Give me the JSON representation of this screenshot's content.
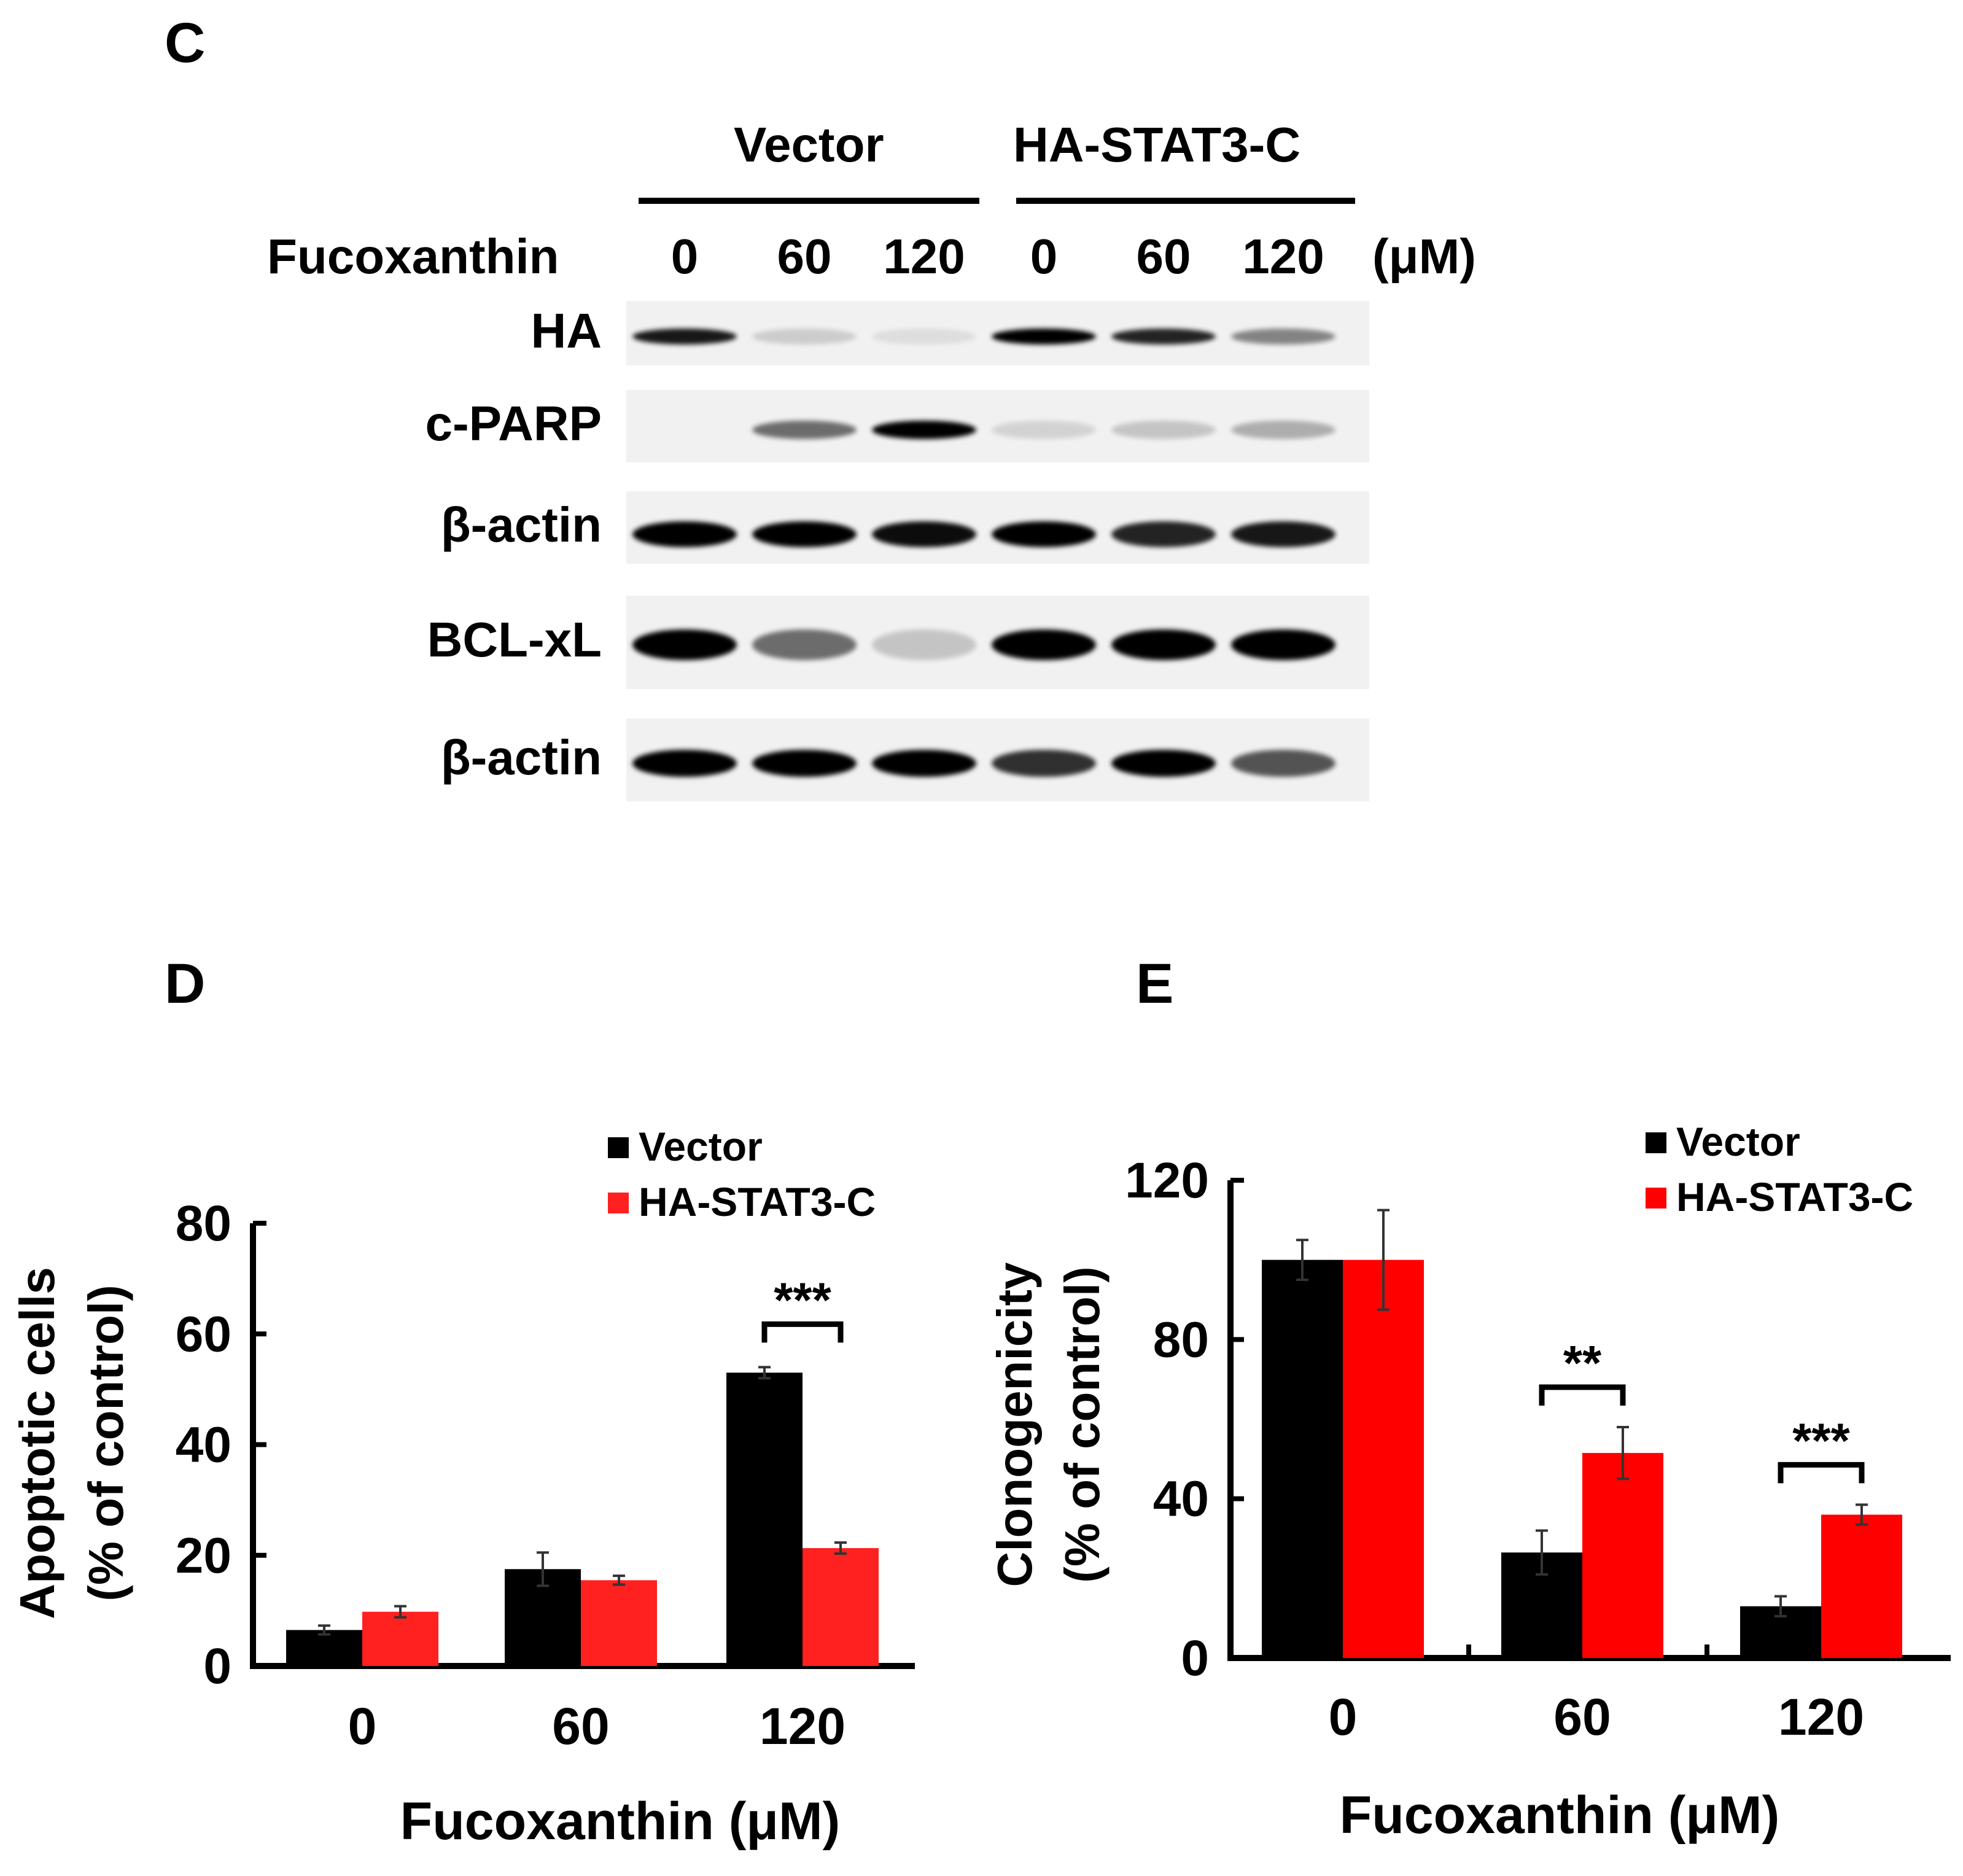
{
  "panel_c": {
    "letter": "C",
    "groups": [
      "Vector",
      "HA-STAT3-C"
    ],
    "treatment_label": "Fucoxanthin",
    "doses": [
      "0",
      "60",
      "120",
      "0",
      "60",
      "120"
    ],
    "unit": "(μM)",
    "rows": [
      {
        "label": "HA",
        "intensity": [
          0.9,
          0.15,
          0.08,
          1.0,
          0.85,
          0.45
        ]
      },
      {
        "label": "c-PARP",
        "intensity": [
          0.0,
          0.55,
          1.0,
          0.12,
          0.18,
          0.28
        ]
      },
      {
        "label": "β-actin",
        "intensity": [
          1.0,
          1.0,
          0.95,
          1.0,
          0.85,
          0.9
        ]
      },
      {
        "label": "BCL-xL",
        "intensity": [
          1.0,
          0.55,
          0.18,
          1.0,
          1.0,
          1.0
        ]
      },
      {
        "label": "β-actin",
        "intensity": [
          1.0,
          1.0,
          1.0,
          0.8,
          1.0,
          0.65
        ]
      }
    ]
  },
  "panel_d": {
    "letter": "D",
    "chart_data": {
      "type": "bar",
      "categories": [
        "0",
        "60",
        "120"
      ],
      "series": [
        {
          "name": "Vector",
          "color": "#000000",
          "values": [
            6.5,
            17.5,
            53
          ],
          "errors": [
            0.8,
            3,
            1
          ]
        },
        {
          "name": "HA-STAT3-C",
          "color": "#ff2020",
          "values": [
            9.8,
            15.5,
            21.3
          ],
          "errors": [
            1,
            0.8,
            1
          ]
        }
      ],
      "xlabel": "Fucoxanthin (μM)",
      "ylabel_line1": "Apoptotic cells",
      "ylabel_line2": "(% of control)",
      "ylim": [
        0,
        80
      ],
      "yticks": [
        "0",
        "20",
        "40",
        "60",
        "80"
      ],
      "significance": [
        {
          "category_index": 2,
          "label": "***"
        }
      ],
      "legend": "top-right"
    }
  },
  "panel_e": {
    "letter": "E",
    "chart_data": {
      "type": "bar",
      "categories": [
        "0",
        "60",
        "120"
      ],
      "series": [
        {
          "name": "Vector",
          "color": "#000000",
          "values": [
            100,
            26.5,
            13
          ],
          "errors": [
            5,
            5.5,
            2.5
          ]
        },
        {
          "name": "HA-STAT3-C",
          "color": "#ff0000",
          "values": [
            100,
            51.5,
            36
          ],
          "errors": [
            12.5,
            6.5,
            2.5
          ]
        }
      ],
      "xlabel": "Fucoxanthin (μM)",
      "ylabel_line1": "Clonogenicity",
      "ylabel_line2": "(% of control)",
      "ylim": [
        0,
        120
      ],
      "yticks": [
        "0",
        "40",
        "80",
        "120"
      ],
      "significance": [
        {
          "category_index": 1,
          "label": "**"
        },
        {
          "category_index": 2,
          "label": "***"
        }
      ],
      "legend": "top-right"
    }
  }
}
